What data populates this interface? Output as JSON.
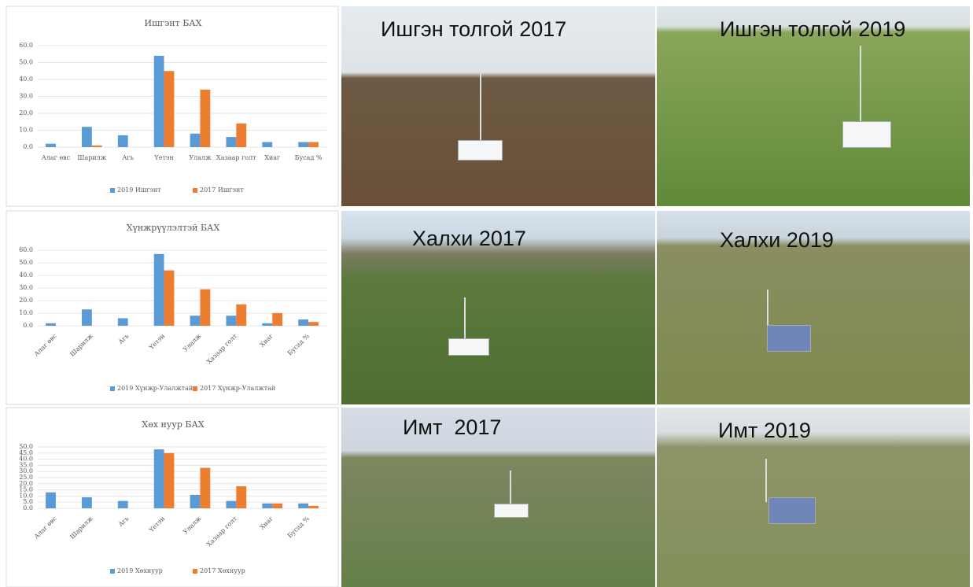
{
  "chart_data": [
    {
      "type": "bar",
      "title": "Ишгэнт БАХ",
      "categories": [
        "Алаг өвс",
        "Шарилж",
        "Агь",
        "Үетэн",
        "Улалж",
        "Хазаар голт",
        "Хиаг",
        "Бусад %"
      ],
      "series": [
        {
          "name": "2019 Ишгэнт",
          "color": "#5b9bd5",
          "values": [
            2,
            12,
            7,
            54,
            8,
            6,
            3,
            3
          ]
        },
        {
          "name": "2017 Ишгэнт",
          "color": "#ed7d31",
          "values": [
            0,
            1,
            0,
            45,
            34,
            14,
            0,
            3
          ]
        }
      ],
      "ylim": [
        0,
        60
      ],
      "yticks": [
        {
          "value": 0,
          "label": "0.0"
        },
        {
          "value": 10,
          "label": "10.0"
        },
        {
          "value": 20,
          "label": "20.0"
        },
        {
          "value": 30,
          "label": "30.0"
        },
        {
          "value": 40,
          "label": "40.0"
        },
        {
          "value": 50,
          "label": "50.0"
        },
        {
          "value": 60,
          "label": "60.0"
        }
      ],
      "grid": true
    },
    {
      "type": "bar",
      "title": "Хүнжрүүлэлтэй БАХ",
      "categories": [
        "Алаг өвс",
        "Шарилж",
        "Агь",
        "Үетэн",
        "Улалж",
        "Хазаар голт",
        "Хиаг",
        "Бусад %"
      ],
      "series": [
        {
          "name": "2019 Хүнжр-Улалжтай",
          "color": "#5b9bd5",
          "values": [
            2,
            13,
            6,
            57,
            8,
            8,
            2,
            5
          ]
        },
        {
          "name": "2017 Хүнжр-Улалжтай",
          "color": "#ed7d31",
          "values": [
            0,
            0,
            0,
            44,
            29,
            17,
            10,
            3
          ]
        }
      ],
      "ylim": [
        0,
        60
      ],
      "yticks": [
        {
          "value": 0,
          "label": "0.0"
        },
        {
          "value": 10,
          "label": "10.0"
        },
        {
          "value": 20,
          "label": "20.0"
        },
        {
          "value": 30,
          "label": "30.0"
        },
        {
          "value": 40,
          "label": "40.0"
        },
        {
          "value": 50,
          "label": "50.0"
        },
        {
          "value": 60,
          "label": "60.0"
        }
      ],
      "grid": true
    },
    {
      "type": "bar",
      "title": "Хөх нуур БАХ",
      "categories": [
        "Алаг өвс",
        "Шарилж",
        "Агь",
        "Үетэн",
        "Улалж",
        "Хазаар голт",
        "Хиаг",
        "Бусад %"
      ],
      "series": [
        {
          "name": "2019 Хөхнуур",
          "color": "#5b9bd5",
          "values": [
            13,
            9,
            6,
            48,
            11,
            6,
            4,
            4
          ]
        },
        {
          "name": "2017 Хөхнуур",
          "color": "#ed7d31",
          "values": [
            0,
            0,
            0,
            45,
            33,
            18,
            4,
            2
          ]
        }
      ],
      "ylim": [
        0,
        50
      ],
      "yticks": [
        {
          "value": 0,
          "label": "0.0"
        },
        {
          "value": 5,
          "label": "5.0"
        },
        {
          "value": 10,
          "label": "10.0"
        },
        {
          "value": 15,
          "label": "15.0"
        },
        {
          "value": 20,
          "label": "20.0"
        },
        {
          "value": 25,
          "label": "25.0"
        },
        {
          "value": 30,
          "label": "30.0"
        },
        {
          "value": 35,
          "label": "35.0"
        },
        {
          "value": 40,
          "label": "40.0"
        },
        {
          "value": 45,
          "label": "45.0"
        },
        {
          "value": 50,
          "label": "50.0"
        }
      ],
      "grid": true
    }
  ],
  "photos": [
    {
      "caption": "Ишгэн толгой 2017"
    },
    {
      "caption": "Ишгэн толгой 2019"
    },
    {
      "caption": "Халхи 2017"
    },
    {
      "caption": "Халхи 2019"
    },
    {
      "caption": "Имт  2017"
    },
    {
      "caption": "Имт 2019"
    }
  ]
}
